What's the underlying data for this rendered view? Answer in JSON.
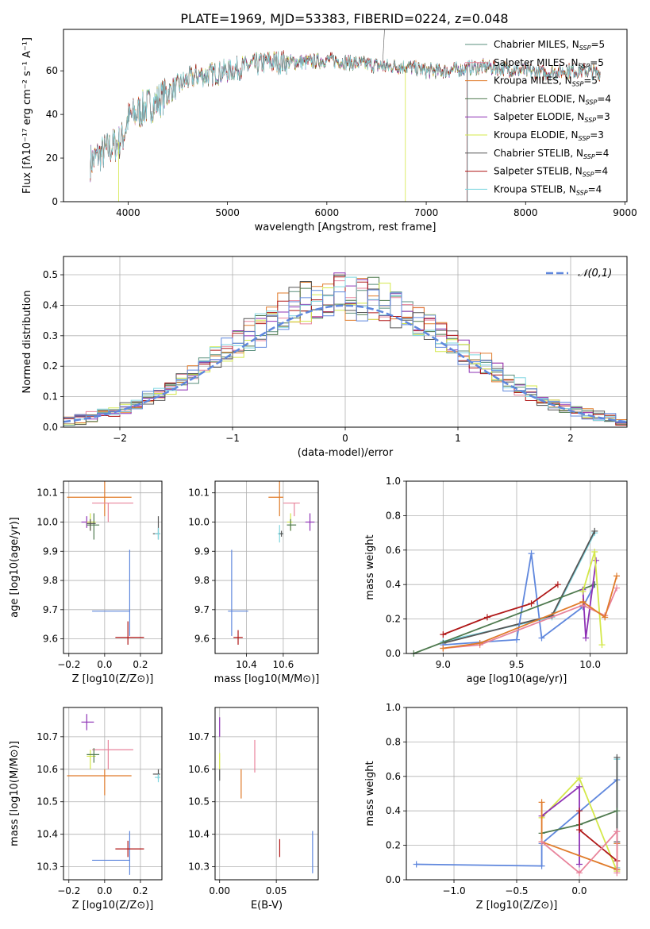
{
  "title": "PLATE=1969, MJD=53383, FIBERID=0224, z=0.048",
  "colors": {
    "chabrier_miles": "#5a8f7c",
    "salpeter_miles": "#e8839b",
    "kroupa_miles": "#e07b2a",
    "chabrier_elodie": "#4f7a4f",
    "salpeter_elodie": "#8e32b5",
    "kroupa_elodie": "#d4e84a",
    "chabrier_stelib": "#555555",
    "salpeter_stelib": "#b01818",
    "kroupa_stelib": "#7ed6e0",
    "blue": "#5f87dd"
  },
  "chart_data": [
    {
      "id": "spectrum",
      "type": "line",
      "xlabel": "wavelength [Angstrom, rest frame]",
      "ylabel": "Flux [fλ10⁻¹⁷ erg cm⁻² s⁻¹ A⁻¹]",
      "xlim": [
        3350,
        9020
      ],
      "ylim": [
        0,
        79
      ],
      "xticks": [
        "4000",
        "5000",
        "6000",
        "7000",
        "8000",
        "9000"
      ],
      "yticks": [
        "0",
        "20",
        "40",
        "60"
      ],
      "legend": [
        "Chabrier MILES, NSSP=5",
        "Salpeter MILES, NSSP=5",
        "Kroupa MILES, NSSP=5",
        "Chabrier ELODIE, NSSP=4",
        "Salpeter ELODIE, NSSP=3",
        "Kroupa ELODIE, NSSP=3",
        "Chabrier STELIB, NSSP=4",
        "Salpeter STELIB, NSSP=4",
        "Kroupa STELIB, NSSP=4"
      ],
      "legend_position": "upper-right",
      "continuum": {
        "x": [
          3620,
          3700,
          3800,
          3900,
          3950,
          4000,
          4100,
          4200,
          4300,
          4400,
          4500,
          4600,
          4700,
          4800,
          4900,
          5000,
          5200,
          5400,
          5600,
          5800,
          6000,
          6200,
          6400,
          6600,
          6800,
          7000,
          7200,
          7400,
          7600,
          7800,
          8000,
          8200,
          8400,
          8600,
          8750
        ],
        "y": [
          18,
          21,
          24,
          27,
          30,
          38,
          41,
          44,
          46,
          50,
          53,
          56,
          58,
          58,
          59,
          60,
          62,
          64,
          64,
          64,
          65,
          64,
          63,
          62,
          62,
          60,
          60,
          61,
          62,
          61,
          60,
          59,
          60,
          60,
          59
        ]
      }
    },
    {
      "id": "residuals",
      "type": "histogram",
      "xlabel": "(data-model)/error",
      "ylabel": "Normed distribution",
      "xlim": [
        -2.5,
        2.5
      ],
      "ylim": [
        0,
        0.56
      ],
      "xticks": [
        "-2",
        "-1",
        "0",
        "1",
        "2"
      ],
      "yticks": [
        "0.0",
        "0.1",
        "0.2",
        "0.3",
        "0.4",
        "0.5"
      ],
      "grid": true,
      "legend": [
        "𝒩(0,1)"
      ],
      "legend_position": "upper-right"
    },
    {
      "id": "age_vs_Z",
      "type": "scatter",
      "xlabel": "Z [log10(Z/Z⊙)]",
      "ylabel": "age [log10(age/yr)]",
      "xlim": [
        -0.23,
        0.32
      ],
      "ylim": [
        9.55,
        10.14
      ],
      "xticks": [
        "-0.2",
        "0.0",
        "0.2"
      ],
      "yticks": [
        "9.6",
        "9.7",
        "9.8",
        "9.9",
        "10.0",
        "10.1"
      ],
      "grid": true,
      "points": [
        {
          "c": "blue",
          "x": 0.14,
          "y": 9.695,
          "xl": -0.07,
          "xh": 0.14,
          "yl": 9.61,
          "yh": 9.905
        },
        {
          "c": "salpeter_stelib",
          "x": 0.13,
          "y": 9.605,
          "xl": 0.06,
          "xh": 0.22,
          "yl": 9.58,
          "yh": 9.66
        },
        {
          "c": "kroupa_miles",
          "x": 0.0,
          "y": 10.085,
          "xl": -0.21,
          "xh": 0.15,
          "yl": 10.02,
          "yh": 10.14
        },
        {
          "c": "salpeter_miles",
          "x": 0.02,
          "y": 10.065,
          "xl": -0.07,
          "xh": 0.16,
          "yl": 10.0,
          "yh": 10.065
        },
        {
          "c": "salpeter_elodie",
          "x": -0.1,
          "y": 10.0,
          "xl": -0.13,
          "xh": -0.06,
          "yl": 9.98,
          "yh": 10.02
        },
        {
          "c": "kroupa_elodie",
          "x": -0.08,
          "y": 10.0,
          "xl": -0.1,
          "xh": -0.05,
          "yl": 9.97,
          "yh": 10.03
        },
        {
          "c": "chabrier_elodie",
          "x": -0.06,
          "y": 9.99,
          "xl": -0.1,
          "xh": -0.03,
          "yl": 9.94,
          "yh": 10.03
        },
        {
          "c": "chabrier_stelib",
          "x": -0.08,
          "y": 9.995,
          "xl": -0.1,
          "xh": -0.05,
          "yl": 9.97,
          "yh": 10.01
        },
        {
          "c": "chabrier_stelib",
          "x": 0.3,
          "y": 9.96,
          "xl": 0.27,
          "xh": 0.31,
          "yl": 9.94,
          "yh": 10.02
        },
        {
          "c": "kroupa_stelib",
          "x": 0.3,
          "y": 9.96,
          "xl": 0.28,
          "xh": 0.31,
          "yl": 9.94,
          "yh": 9.98
        }
      ]
    },
    {
      "id": "age_vs_mass",
      "type": "scatter",
      "xlabel": "mass [log10(M/M⊙)]",
      "ylabel": "",
      "xlim": [
        10.23,
        10.79
      ],
      "ylim": [
        9.55,
        10.14
      ],
      "xticks": [
        "10.4",
        "10.6"
      ],
      "yticks": [
        "9.6",
        "9.7",
        "9.8",
        "9.9",
        "10.0",
        "10.1"
      ],
      "grid": true,
      "points": [
        {
          "c": "blue",
          "x": 10.32,
          "y": 9.695,
          "xl": 10.3,
          "xh": 10.41,
          "yl": 9.61,
          "yh": 9.905
        },
        {
          "c": "salpeter_stelib",
          "x": 10.355,
          "y": 9.605,
          "xl": 10.33,
          "xh": 10.38,
          "yl": 9.58,
          "yh": 9.63
        },
        {
          "c": "kroupa_miles",
          "x": 10.58,
          "y": 10.085,
          "xl": 10.52,
          "xh": 10.6,
          "yl": 10.02,
          "yh": 10.14
        },
        {
          "c": "salpeter_miles",
          "x": 10.66,
          "y": 10.065,
          "xl": 10.6,
          "xh": 10.69,
          "yl": 10.02,
          "yh": 10.065
        },
        {
          "c": "salpeter_elodie",
          "x": 10.745,
          "y": 10.0,
          "xl": 10.72,
          "xh": 10.77,
          "yl": 9.97,
          "yh": 10.03
        },
        {
          "c": "kroupa_elodie",
          "x": 10.64,
          "y": 10.0,
          "xl": 10.62,
          "xh": 10.65,
          "yl": 9.97,
          "yh": 10.03
        },
        {
          "c": "chabrier_elodie",
          "x": 10.64,
          "y": 9.99,
          "xl": 10.62,
          "xh": 10.67,
          "yl": 9.97,
          "yh": 10.01
        },
        {
          "c": "kroupa_stelib",
          "x": 10.58,
          "y": 9.96,
          "xl": 10.57,
          "xh": 10.6,
          "yl": 9.93,
          "yh": 9.99
        },
        {
          "c": "chabrier_stelib",
          "x": 10.59,
          "y": 9.96,
          "xl": 10.58,
          "xh": 10.6,
          "yl": 9.95,
          "yh": 9.97
        }
      ]
    },
    {
      "id": "weight_vs_age",
      "type": "line",
      "xlabel": "age [log10(age/yr)]",
      "ylabel": "mass weight",
      "xlim": [
        8.75,
        10.25
      ],
      "ylim": [
        0,
        1
      ],
      "xticks": [
        "9.0",
        "9.5",
        "10.0"
      ],
      "yticks": [
        "0.0",
        "0.2",
        "0.4",
        "0.6",
        "0.8",
        "1.0"
      ],
      "grid": true,
      "series": [
        {
          "c": "kroupa_stelib",
          "x": [
            9.0,
            9.74,
            10.03
          ],
          "y": [
            0.07,
            0.21,
            0.7
          ]
        },
        {
          "c": "chabrier_stelib",
          "x": [
            9.0,
            9.74,
            10.03
          ],
          "y": [
            0.06,
            0.22,
            0.71
          ]
        },
        {
          "c": "blue",
          "x": [
            9.0,
            9.5,
            9.6,
            9.67,
            9.95,
            10.03
          ],
          "y": [
            0.05,
            0.08,
            0.58,
            0.09,
            0.27,
            0.4
          ]
        },
        {
          "c": "salpeter_stelib",
          "x": [
            9.0,
            9.3,
            9.6,
            9.78
          ],
          "y": [
            0.11,
            0.21,
            0.29,
            0.4
          ]
        },
        {
          "c": "chabrier_elodie",
          "x": [
            8.8,
            10.03
          ],
          "y": [
            0.0,
            0.4
          ]
        },
        {
          "c": "salpeter_elodie",
          "x": [
            9.95,
            9.97,
            10.04
          ],
          "y": [
            0.37,
            0.09,
            0.54
          ]
        },
        {
          "c": "kroupa_elodie",
          "x": [
            9.95,
            10.03,
            10.08
          ],
          "y": [
            0.36,
            0.59,
            0.05
          ]
        },
        {
          "c": "salpeter_miles",
          "x": [
            9.0,
            9.25,
            9.95,
            10.1,
            10.18
          ],
          "y": [
            0.03,
            0.05,
            0.28,
            0.22,
            0.38
          ]
        },
        {
          "c": "kroupa_miles",
          "x": [
            9.0,
            9.25,
            9.95,
            10.1,
            10.18
          ],
          "y": [
            0.03,
            0.06,
            0.3,
            0.21,
            0.45
          ]
        }
      ]
    },
    {
      "id": "mass_vs_Z",
      "type": "scatter",
      "xlabel": "Z [log10(Z/Z⊙)]",
      "ylabel": "mass [log10(M/M⊙)]",
      "xlim": [
        -0.23,
        0.32
      ],
      "ylim": [
        10.26,
        10.79
      ],
      "xticks": [
        "-0.2",
        "0.0",
        "0.2"
      ],
      "yticks": [
        "10.3",
        "10.4",
        "10.5",
        "10.6",
        "10.7"
      ],
      "grid": true,
      "points": [
        {
          "c": "blue",
          "x": 0.14,
          "y": 10.32,
          "xl": -0.07,
          "xh": 0.14,
          "yl": 10.275,
          "yh": 10.41
        },
        {
          "c": "salpeter_stelib",
          "x": 0.13,
          "y": 10.355,
          "xl": 0.06,
          "xh": 0.22,
          "yl": 10.33,
          "yh": 10.38
        },
        {
          "c": "kroupa_miles",
          "x": 0.0,
          "y": 10.58,
          "xl": -0.21,
          "xh": 0.15,
          "yl": 10.52,
          "yh": 10.6
        },
        {
          "c": "salpeter_miles",
          "x": 0.02,
          "y": 10.66,
          "xl": -0.07,
          "xh": 0.16,
          "yl": 10.6,
          "yh": 10.69
        },
        {
          "c": "salpeter_elodie",
          "x": -0.1,
          "y": 10.745,
          "xl": -0.13,
          "xh": -0.06,
          "yl": 10.72,
          "yh": 10.77
        },
        {
          "c": "kroupa_elodie",
          "x": -0.08,
          "y": 10.64,
          "xl": -0.1,
          "xh": -0.05,
          "yl": 10.6,
          "yh": 10.66
        },
        {
          "c": "chabrier_elodie",
          "x": -0.06,
          "y": 10.645,
          "xl": -0.1,
          "xh": -0.03,
          "yl": 10.62,
          "yh": 10.665
        },
        {
          "c": "chabrier_stelib",
          "x": 0.3,
          "y": 10.585,
          "xl": 0.27,
          "xh": 0.31,
          "yl": 10.57,
          "yh": 10.6
        },
        {
          "c": "kroupa_stelib",
          "x": 0.3,
          "y": 10.575,
          "xl": 0.28,
          "xh": 0.31,
          "yl": 10.56,
          "yh": 10.585
        }
      ]
    },
    {
      "id": "mass_vs_ebv",
      "type": "scatter",
      "xlabel": "E(B-V)",
      "ylabel": "",
      "xlim": [
        -0.004,
        0.087
      ],
      "ylim": [
        10.26,
        10.79
      ],
      "xticks": [
        "0.00",
        "0.05"
      ],
      "yticks": [
        "10.3",
        "10.4",
        "10.5",
        "10.6",
        "10.7"
      ],
      "grid": true,
      "points": [
        {
          "c": "blue",
          "x": 0.082,
          "y": 10.34,
          "yl": 10.28,
          "yh": 10.41
        },
        {
          "c": "salpeter_stelib",
          "x": 0.053,
          "y": 10.36,
          "yl": 10.33,
          "yh": 10.385
        },
        {
          "c": "kroupa_miles",
          "x": 0.019,
          "y": 10.55,
          "yl": 10.51,
          "yh": 10.6
        },
        {
          "c": "salpeter_miles",
          "x": 0.031,
          "y": 10.64,
          "yl": 10.59,
          "yh": 10.69
        },
        {
          "c": "salpeter_elodie",
          "x": 0.0,
          "y": 10.73,
          "yl": 10.7,
          "yh": 10.76
        },
        {
          "c": "kroupa_elodie",
          "x": 0.0,
          "y": 10.62,
          "yl": 10.6,
          "yh": 10.65
        },
        {
          "c": "chabrier_stelib",
          "x": 0.0,
          "y": 10.58,
          "yl": 10.565,
          "yh": 10.6
        }
      ]
    },
    {
      "id": "weight_vs_Z",
      "type": "line",
      "xlabel": "Z [log10(Z/Z⊙)]",
      "ylabel": "mass weight",
      "xlim": [
        -1.38,
        0.38
      ],
      "ylim": [
        0,
        1
      ],
      "xticks": [
        "-1.0",
        "-0.5",
        "0.0"
      ],
      "yticks": [
        "0.0",
        "0.2",
        "0.4",
        "0.6",
        "0.8",
        "1.0"
      ],
      "grid": true,
      "series": [
        {
          "c": "blue",
          "x": [
            -1.3,
            -0.3,
            -0.3,
            0.3
          ],
          "y": [
            0.09,
            0.08,
            0.21,
            0.58
          ]
        },
        {
          "c": "kroupa_stelib",
          "x": [
            0.3,
            0.3,
            0.3
          ],
          "y": [
            0.21,
            0.7,
            0.07
          ]
        },
        {
          "c": "chabrier_stelib",
          "x": [
            0.3,
            0.3,
            0.3
          ],
          "y": [
            0.22,
            0.71,
            0.06
          ]
        },
        {
          "c": "kroupa_elodie",
          "x": [
            -0.3,
            0.0,
            0.3
          ],
          "y": [
            0.36,
            0.59,
            0.05
          ]
        },
        {
          "c": "salpeter_elodie",
          "x": [
            -0.3,
            0.0,
            0.0
          ],
          "y": [
            0.37,
            0.54,
            0.09
          ]
        },
        {
          "c": "chabrier_elodie",
          "x": [
            -0.3,
            0.0,
            0.3
          ],
          "y": [
            0.27,
            0.32,
            0.4
          ]
        },
        {
          "c": "salpeter_stelib",
          "x": [
            0.0,
            0.0,
            0.3
          ],
          "y": [
            0.4,
            0.29,
            0.11
          ]
        },
        {
          "c": "kroupa_miles",
          "x": [
            -0.3,
            -0.3,
            0.3,
            0.3
          ],
          "y": [
            0.45,
            0.22,
            0.06,
            0.21
          ]
        },
        {
          "c": "salpeter_miles",
          "x": [
            -0.3,
            0.0,
            0.3,
            0.3
          ],
          "y": [
            0.22,
            0.04,
            0.28,
            0.04
          ]
        }
      ]
    }
  ]
}
